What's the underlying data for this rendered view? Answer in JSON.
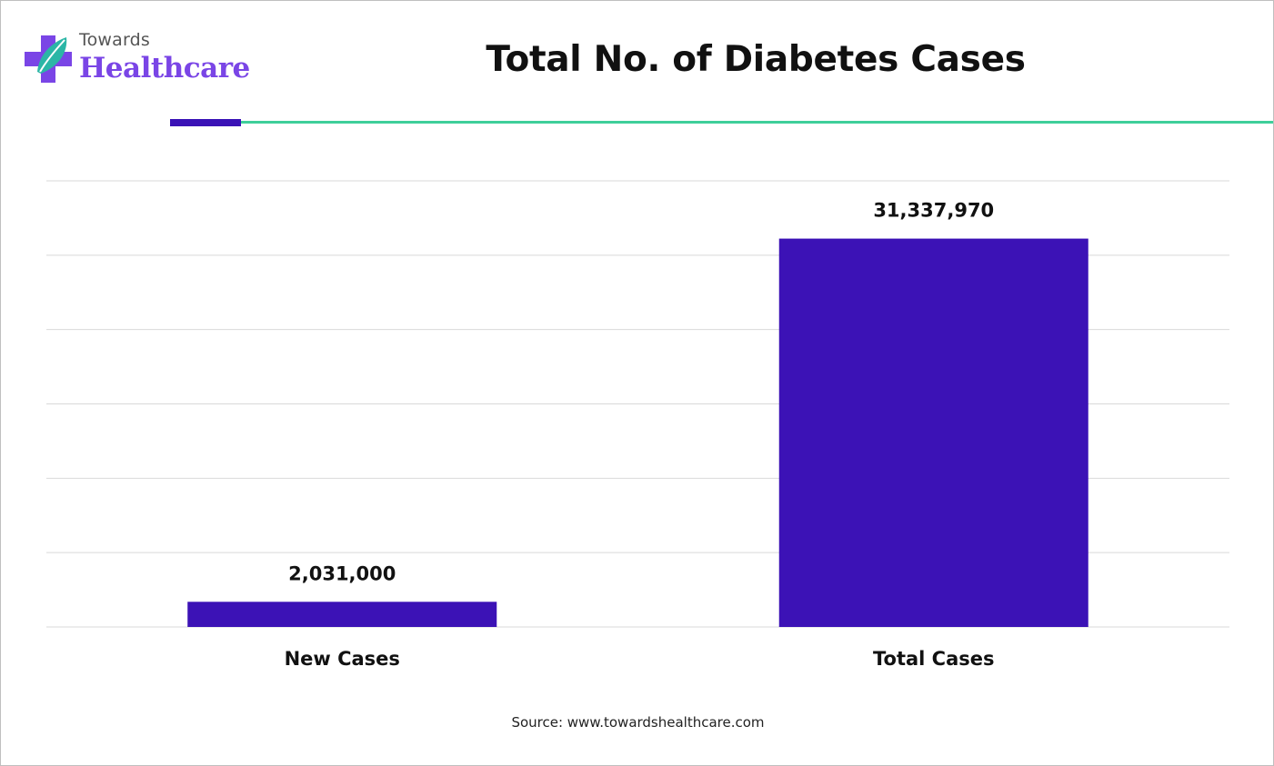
{
  "logo": {
    "top_text": "Towards",
    "bottom_text": "Healthcare",
    "icon": "medical-cross-leaf-icon"
  },
  "title": "Total No. of Diabetes Cases",
  "source": "Source: www.towardshealthcare.com",
  "colors": {
    "bar": "#3c12b6",
    "accent_rule": "#3a12b6",
    "header_line": "#3ecf9a",
    "gridline": "#d9d9d9",
    "logo_purple": "#7a45e6",
    "logo_teal": "#2bb6a6"
  },
  "chart_data": {
    "type": "bar",
    "title": "Total No. of Diabetes Cases",
    "categories": [
      "New Cases",
      "Total Cases"
    ],
    "values": [
      2031000,
      31337970
    ],
    "data_labels": [
      "2,031,000",
      "31,337,970"
    ],
    "xlabel": "",
    "ylabel": "",
    "ylim": [
      0,
      36000000
    ],
    "grid": true,
    "legend": "none"
  }
}
